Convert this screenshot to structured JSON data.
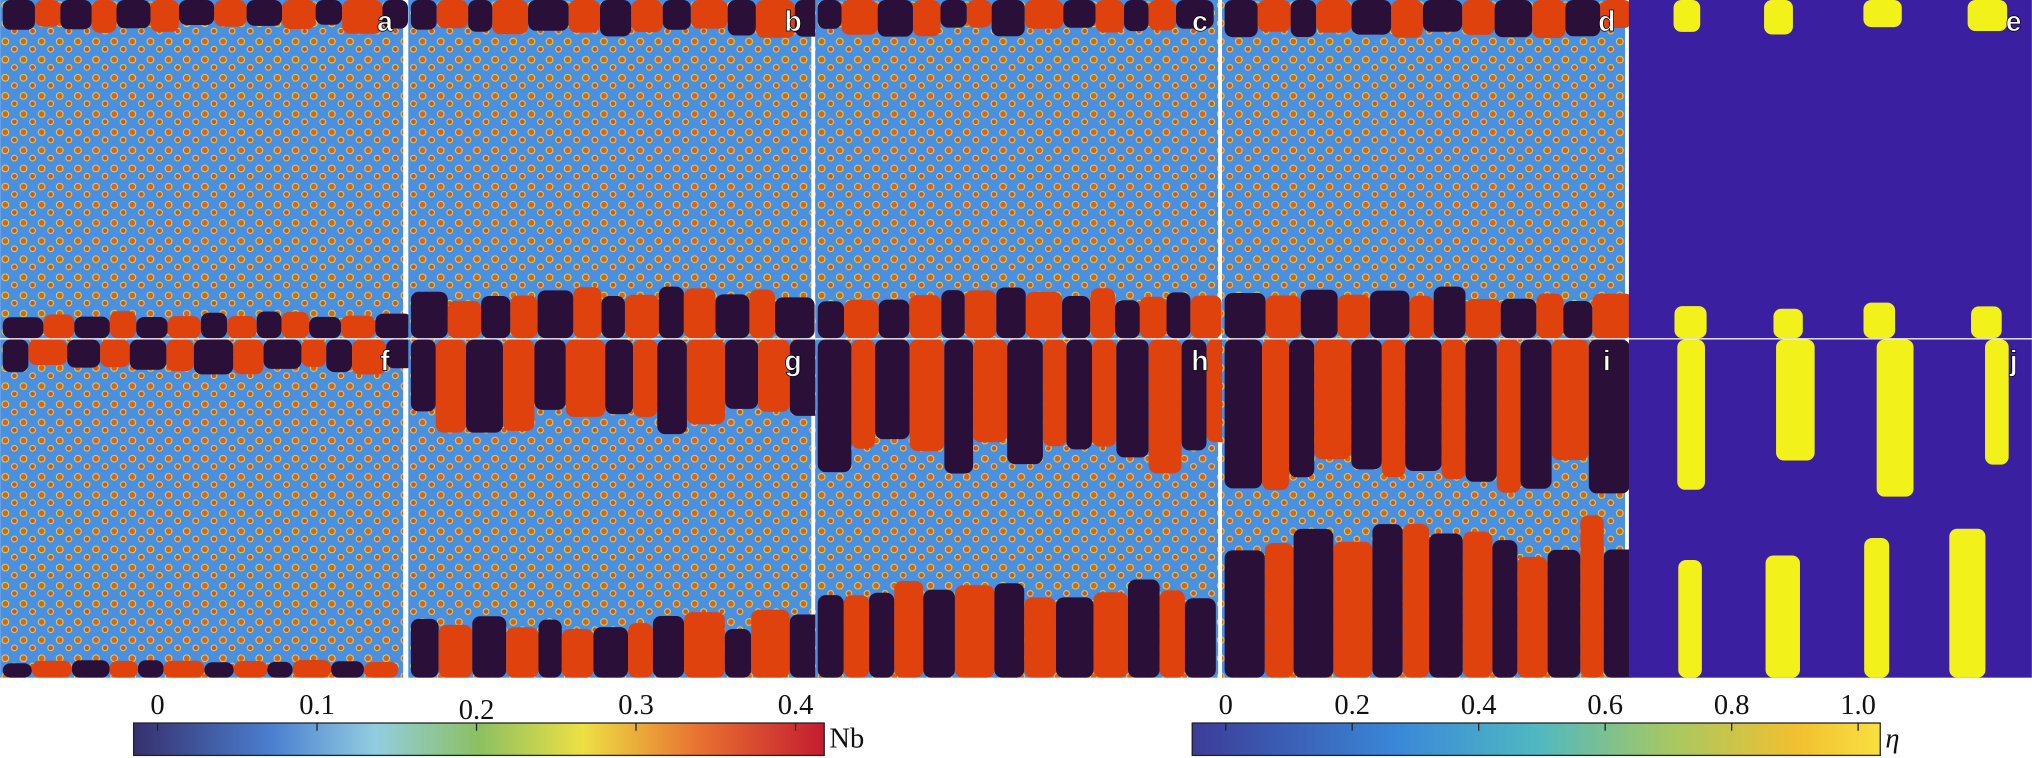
{
  "panels": [
    "a",
    "b",
    "c",
    "d",
    "e",
    "f",
    "g",
    "h",
    "i",
    "j"
  ],
  "colorbars": [
    {
      "label": "Nb",
      "lim": [
        -0.015,
        0.418
      ],
      "ticks": [
        0,
        0.1,
        0.2,
        0.3,
        0.4
      ]
    },
    {
      "label": "η",
      "lim": [
        -0.053,
        1.035
      ],
      "ticks": [
        0,
        0.2,
        0.4,
        0.6,
        0.8,
        {
          "value": 1,
          "label": "1.0"
        }
      ]
    }
  ]
}
